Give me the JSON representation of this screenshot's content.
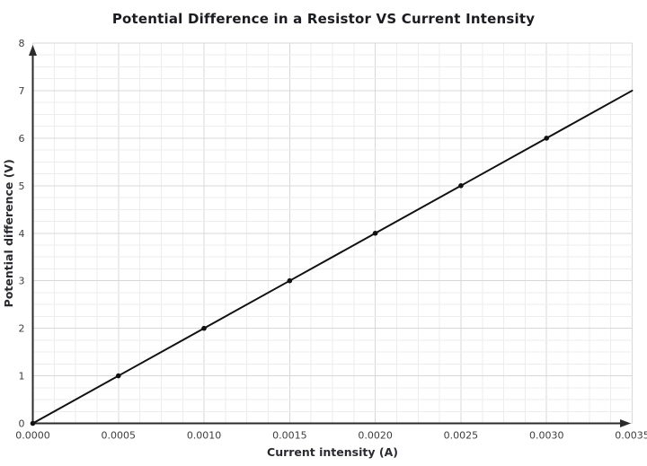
{
  "chart_data": {
    "type": "line",
    "title": "Potential Difference in a Resistor VS Current Intensity",
    "xlabel": "Current intensity (A)",
    "ylabel": "Potential difference (V)",
    "xlim": [
      0,
      0.0035
    ],
    "ylim": [
      0,
      8
    ],
    "grid": "major+minor",
    "x_minor_divisions": 4,
    "y_minor_divisions": 4,
    "x_ticks": [
      {
        "value": 0.0,
        "label": "0.0000"
      },
      {
        "value": 0.0005,
        "label": "0.0005"
      },
      {
        "value": 0.001,
        "label": "0.0010"
      },
      {
        "value": 0.0015,
        "label": "0.0015"
      },
      {
        "value": 0.002,
        "label": "0.0020"
      },
      {
        "value": 0.0025,
        "label": "0.0025"
      },
      {
        "value": 0.003,
        "label": "0.0030"
      },
      {
        "value": 0.0035,
        "label": "0.0035"
      }
    ],
    "y_ticks": [
      {
        "value": 0,
        "label": "0"
      },
      {
        "value": 1,
        "label": "1"
      },
      {
        "value": 2,
        "label": "2"
      },
      {
        "value": 3,
        "label": "3"
      },
      {
        "value": 4,
        "label": "4"
      },
      {
        "value": 5,
        "label": "5"
      },
      {
        "value": 6,
        "label": "6"
      },
      {
        "value": 7,
        "label": "7"
      },
      {
        "value": 8,
        "label": "8"
      }
    ],
    "series": [
      {
        "name": "potential-difference-vs-current",
        "marker_points": [
          [
            0.0,
            0
          ],
          [
            0.0005,
            1
          ],
          [
            0.001,
            2
          ],
          [
            0.0015,
            3
          ],
          [
            0.002,
            4
          ],
          [
            0.0025,
            5
          ],
          [
            0.003,
            6
          ]
        ],
        "line_end": [
          0.0035,
          7
        ],
        "color": "#111111",
        "marker": "dot"
      }
    ],
    "colors": {
      "grid_major": "#d8d8d8",
      "grid_minor": "#ededed",
      "axis": "#2b2b2b",
      "tick_text": "#3e3e3e",
      "title": "#1b1b22"
    },
    "legend": "none"
  }
}
